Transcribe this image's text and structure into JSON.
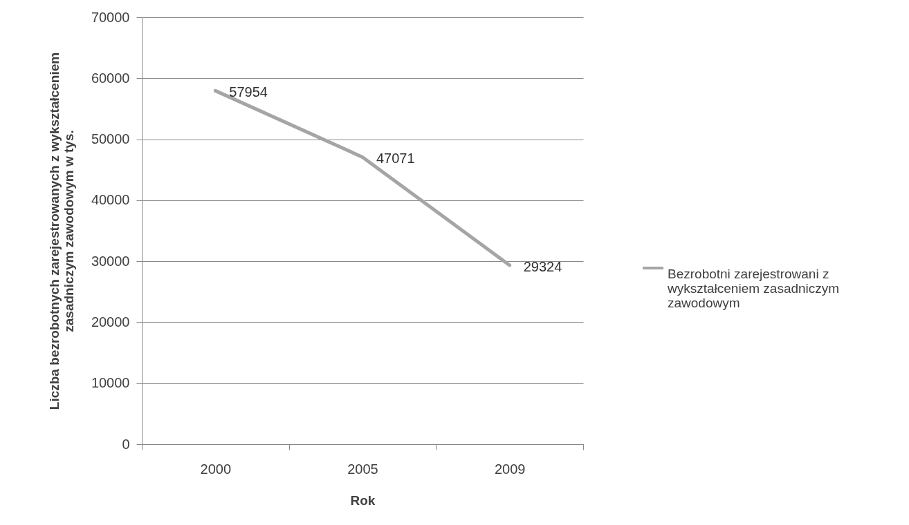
{
  "chart_data": {
    "type": "line",
    "xlabel": "Rok",
    "ylabel": "Liczba bezrobotnych zarejestrowanych z wykształceniem zasadniczym zawodowym w tys.",
    "categories": [
      "2000",
      "2005",
      "2009"
    ],
    "series": [
      {
        "name": "Bezrobotni zarejestrowani z wykształceniem zasadniczym zawodowym",
        "color": "#a5a5a5",
        "values": [
          57954,
          47071,
          29324
        ]
      }
    ],
    "ylim": [
      0,
      70000
    ],
    "yticks": [
      0,
      10000,
      20000,
      30000,
      40000,
      50000,
      60000,
      70000
    ],
    "grid": "y",
    "legend": "right",
    "data_labels": true
  }
}
